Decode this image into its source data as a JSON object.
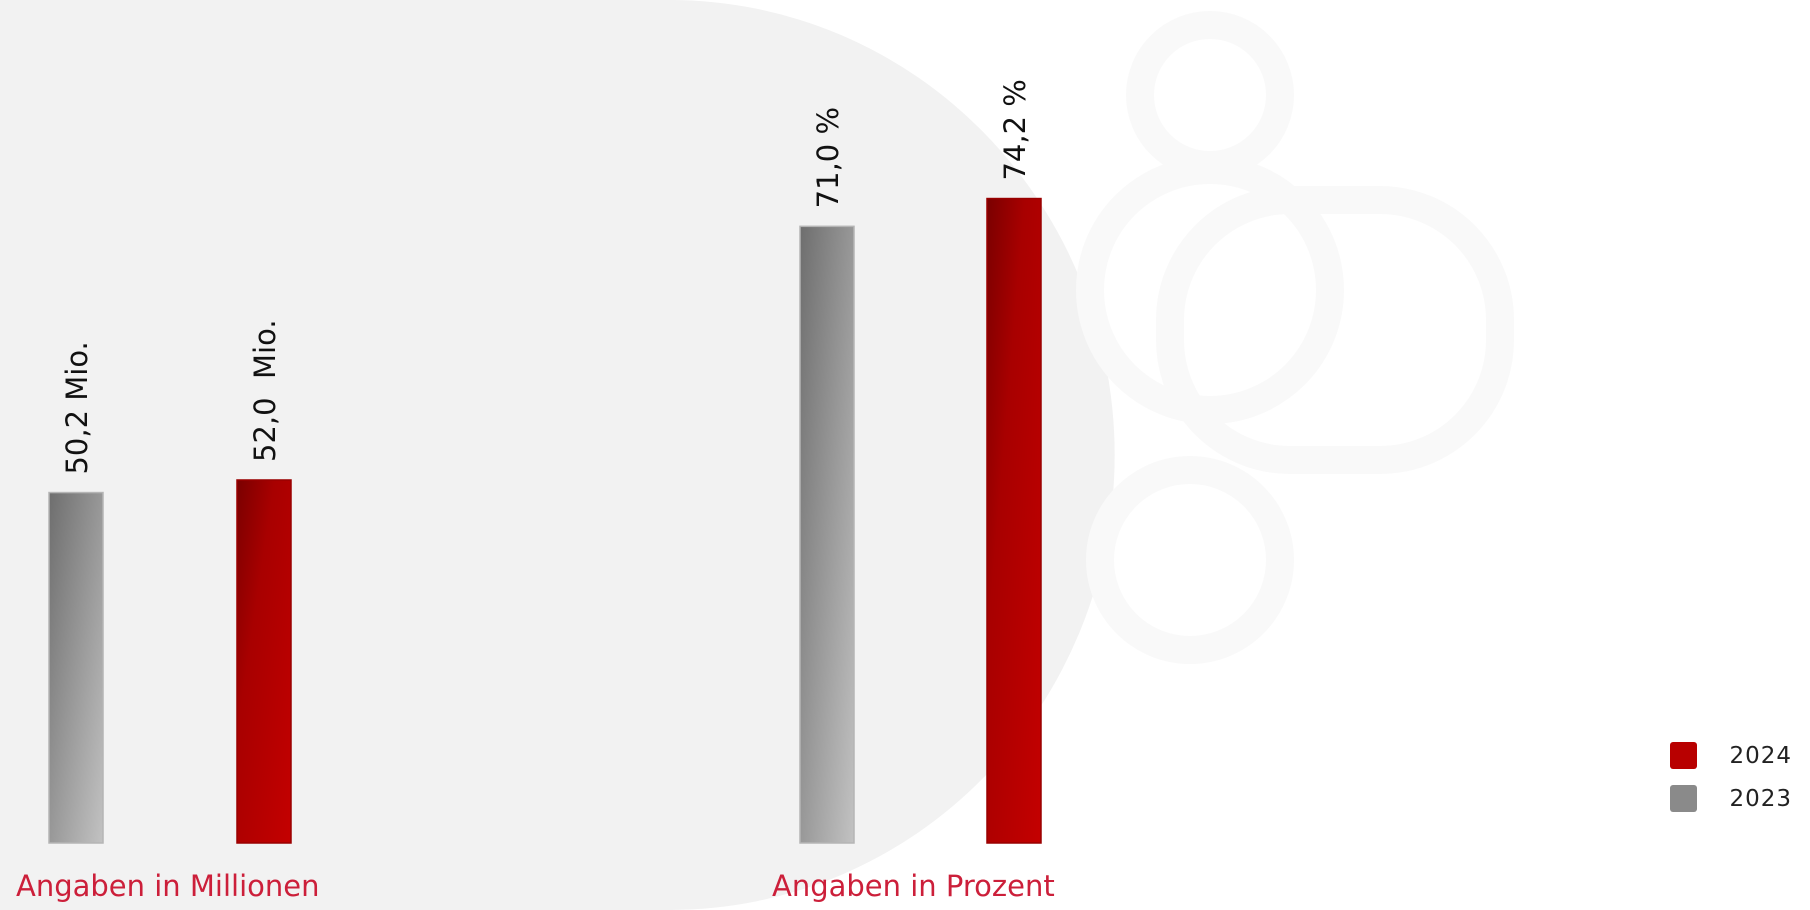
{
  "colors": {
    "series_2024": "#b80000",
    "series_2023": "#8a8a8a"
  },
  "legend": [
    {
      "label": "2024",
      "color": "#b80000"
    },
    {
      "label": "2023",
      "color": "#8a8a8a"
    }
  ],
  "chart_data": [
    {
      "type": "bar",
      "title": "",
      "caption": "Angaben in Millionen",
      "categories": [
        "2023",
        "2024"
      ],
      "series": [
        {
          "name": "",
          "values": [
            50.2,
            52.0
          ],
          "labels": [
            "50,2 Mio.",
            "52,0  Mio."
          ]
        }
      ],
      "ylim": [
        0,
        106
      ],
      "grid": false,
      "legend_placement": "bottom-right"
    },
    {
      "type": "bar",
      "title": "",
      "caption": "Angaben in Prozent",
      "categories": [
        "2023",
        "2024"
      ],
      "series": [
        {
          "name": "",
          "values": [
            71.0,
            74.2
          ],
          "labels": [
            "71,0 %",
            "74,2 %"
          ]
        }
      ],
      "ylim": [
        0,
        85.2
      ],
      "grid": false,
      "legend_placement": "bottom-right"
    }
  ]
}
